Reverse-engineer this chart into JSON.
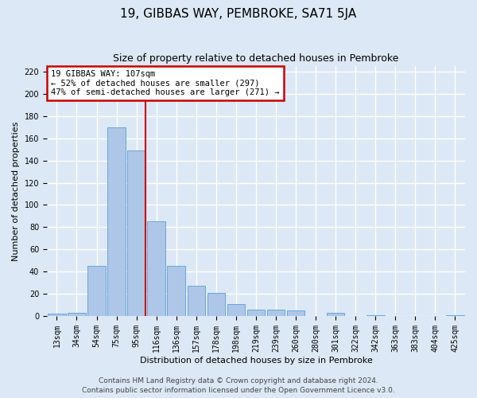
{
  "title": "19, GIBBAS WAY, PEMBROKE, SA71 5JA",
  "subtitle": "Size of property relative to detached houses in Pembroke",
  "xlabel": "Distribution of detached houses by size in Pembroke",
  "ylabel": "Number of detached properties",
  "footer_line1": "Contains HM Land Registry data © Crown copyright and database right 2024.",
  "footer_line2": "Contains public sector information licensed under the Open Government Licence v3.0.",
  "bin_labels": [
    "13sqm",
    "34sqm",
    "54sqm",
    "75sqm",
    "95sqm",
    "116sqm",
    "136sqm",
    "157sqm",
    "178sqm",
    "198sqm",
    "219sqm",
    "239sqm",
    "260sqm",
    "280sqm",
    "301sqm",
    "322sqm",
    "342sqm",
    "363sqm",
    "383sqm",
    "404sqm",
    "425sqm"
  ],
  "bar_values": [
    2,
    3,
    45,
    170,
    149,
    85,
    45,
    27,
    21,
    11,
    6,
    6,
    5,
    0,
    3,
    0,
    1,
    0,
    0,
    0,
    1
  ],
  "bar_color": "#aec6e8",
  "bar_edgecolor": "#5a9fd4",
  "vline_bin_index": 4,
  "annotation_text": "19 GIBBAS WAY: 107sqm\n← 52% of detached houses are smaller (297)\n47% of semi-detached houses are larger (271) →",
  "annotation_box_color": "#ffffff",
  "annotation_border_color": "#cc0000",
  "vline_color": "#cc0000",
  "ylim": [
    0,
    225
  ],
  "yticks": [
    0,
    20,
    40,
    60,
    80,
    100,
    120,
    140,
    160,
    180,
    200,
    220
  ],
  "background_color": "#dce8f5",
  "grid_color": "#ffffff",
  "title_fontsize": 11,
  "subtitle_fontsize": 9,
  "axis_label_fontsize": 8,
  "tick_fontsize": 7,
  "footer_fontsize": 6.5,
  "annotation_fontsize": 7.5
}
